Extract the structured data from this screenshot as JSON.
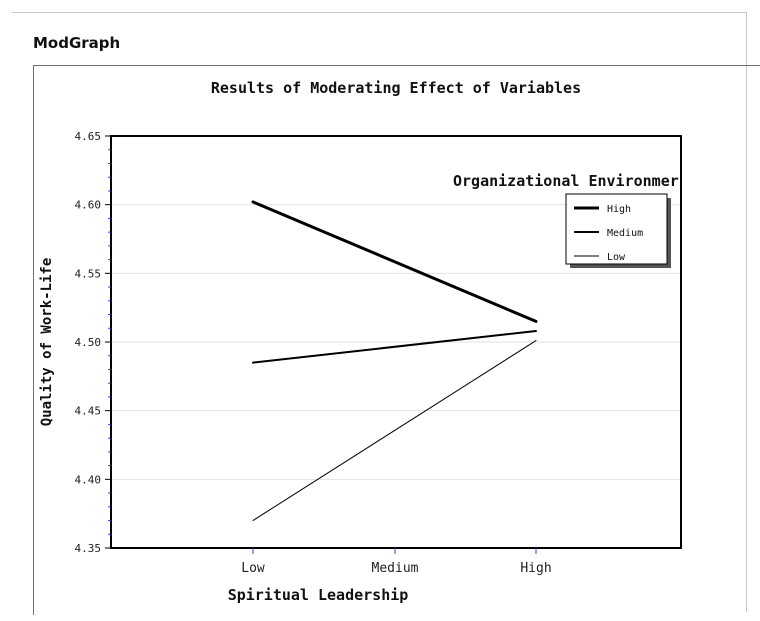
{
  "panel": {
    "title": "ModGraph"
  },
  "chart_data": {
    "type": "line",
    "title": "Results of Moderating Effect of Variables",
    "xlabel": "Spiritual Leadership",
    "ylabel": "Quality of Work-Life",
    "categories": [
      "Low",
      "Medium",
      "High"
    ],
    "ylim": [
      4.35,
      4.65
    ],
    "yticks": [
      "4.65",
      "4.60",
      "4.55",
      "4.50",
      "4.45",
      "4.40",
      "4.35"
    ],
    "grid": true,
    "legend_title": "Organizational Environmer",
    "legend_position": "right",
    "series": [
      {
        "name": "High",
        "x": [
          "Low",
          "High"
        ],
        "values": [
          4.602,
          4.515
        ],
        "color": "#000000"
      },
      {
        "name": "Medium",
        "x": [
          "Low",
          "High"
        ],
        "values": [
          4.485,
          4.508
        ],
        "color": "#000000"
      },
      {
        "name": "Low",
        "x": [
          "Low",
          "High"
        ],
        "values": [
          4.37,
          4.501
        ],
        "color": "#000000"
      }
    ]
  }
}
